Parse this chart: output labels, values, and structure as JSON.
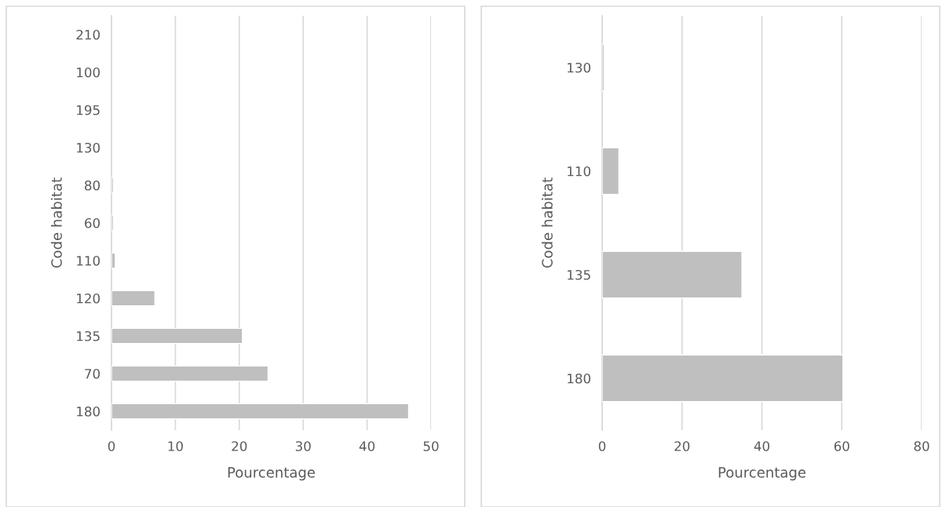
{
  "chart_data": [
    {
      "type": "bar",
      "orientation": "horizontal",
      "xlabel": "Pourcentage",
      "ylabel": "Code habitat",
      "categories": [
        "210",
        "100",
        "195",
        "130",
        "80",
        "60",
        "110",
        "120",
        "135",
        "70",
        "180"
      ],
      "values": [
        null,
        null,
        null,
        null,
        0.3,
        0.3,
        0.6,
        6.8,
        20.5,
        24.5,
        46.5
      ],
      "color": "#bfbfbf",
      "xlim": [
        0,
        50
      ],
      "xticks": [
        0,
        10,
        20,
        30,
        40,
        50
      ],
      "grid": "x"
    },
    {
      "type": "bar",
      "orientation": "horizontal",
      "xlabel": "Pourcentage",
      "ylabel": "Code habitat",
      "categories": [
        "130",
        "110",
        "135",
        "180"
      ],
      "values": [
        0.5,
        4.2,
        35,
        60.3
      ],
      "color": "#bfbfbf",
      "xlim": [
        0,
        80
      ],
      "xticks": [
        0,
        20,
        40,
        60,
        80
      ],
      "grid": "x"
    }
  ]
}
